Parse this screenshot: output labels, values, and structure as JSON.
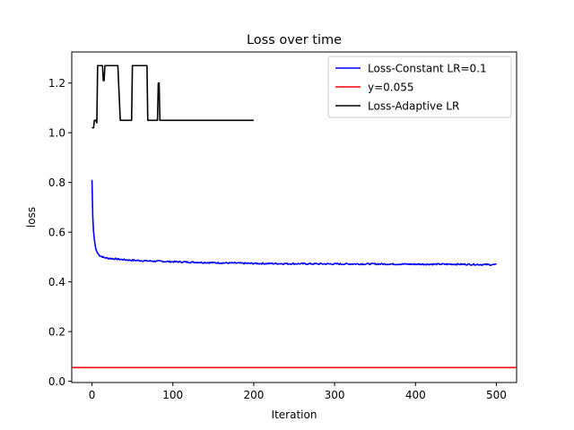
{
  "chart_data": {
    "type": "line",
    "title": "Loss over time",
    "xlabel": "Iteration",
    "ylabel": "loss",
    "xlim": [
      -25,
      525
    ],
    "ylim": [
      -0.005,
      1.325
    ],
    "x_ticks": [
      0,
      100,
      200,
      300,
      400,
      500
    ],
    "y_ticks": [
      0.0,
      0.2,
      0.4,
      0.6,
      0.8,
      1.0,
      1.2
    ],
    "x_tick_labels": [
      "0",
      "100",
      "200",
      "300",
      "400",
      "500"
    ],
    "y_tick_labels": [
      "0.0",
      "0.2",
      "0.4",
      "0.6",
      "0.8",
      "1.0",
      "1.2"
    ],
    "grid": false,
    "legend_position": "top-right",
    "series": [
      {
        "name": "Loss-Constant LR=0.1",
        "color": "#0000ff",
        "style": "noisy-decay",
        "x": [
          0,
          1,
          2,
          3,
          4,
          5,
          7,
          10,
          15,
          20,
          30,
          40,
          50,
          70,
          100,
          150,
          200,
          250,
          300,
          350,
          400,
          450,
          500
        ],
        "y": [
          0.81,
          0.66,
          0.6,
          0.57,
          0.545,
          0.53,
          0.515,
          0.505,
          0.498,
          0.495,
          0.492,
          0.489,
          0.487,
          0.484,
          0.481,
          0.477,
          0.474,
          0.473,
          0.472,
          0.472,
          0.471,
          0.471,
          0.469
        ]
      },
      {
        "name": "y=0.055",
        "color": "#ff0000",
        "style": "hline",
        "y": 0.055
      },
      {
        "name": "Loss-Adaptive LR",
        "color": "#000000",
        "style": "step",
        "x": [
          0,
          2,
          3,
          5,
          6,
          7,
          13,
          14,
          15,
          16,
          31,
          32,
          35,
          48,
          49,
          50,
          51,
          55,
          68,
          69,
          70,
          71,
          80,
          81,
          82,
          83,
          84,
          85,
          200
        ],
        "y": [
          1.02,
          1.02,
          1.05,
          1.05,
          1.04,
          1.27,
          1.27,
          1.21,
          1.21,
          1.27,
          1.27,
          1.27,
          1.05,
          1.05,
          1.05,
          1.27,
          1.27,
          1.27,
          1.27,
          1.05,
          1.05,
          1.05,
          1.05,
          1.05,
          1.2,
          1.2,
          1.05,
          1.05,
          1.05
        ]
      }
    ]
  }
}
